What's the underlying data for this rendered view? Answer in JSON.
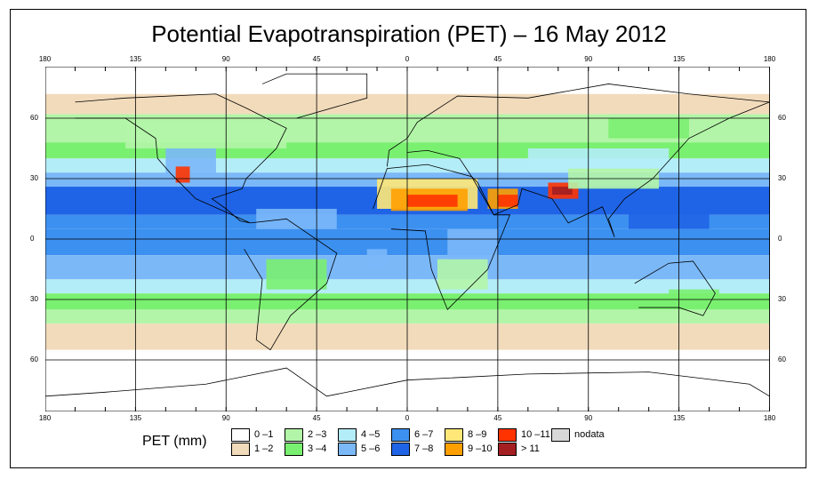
{
  "title": "Potential Evapotranspiration (PET) – 16 May 2012",
  "axes": {
    "lon_labels": [
      "180",
      "135",
      "90",
      "45",
      "0",
      "45",
      "90",
      "135",
      "180"
    ],
    "lat_labels": [
      "60",
      "30",
      "0",
      "30",
      "60"
    ]
  },
  "legend": {
    "title": "PET (mm)",
    "items": [
      {
        "label": "0 –1",
        "color": "#ffffff"
      },
      {
        "label": "1 –2",
        "color": "#f2dbbb"
      },
      {
        "label": "2 –3",
        "color": "#b3f5a8"
      },
      {
        "label": "3 –4",
        "color": "#7af070"
      },
      {
        "label": "4 –5",
        "color": "#b3edf8"
      },
      {
        "label": "5 –6",
        "color": "#7bb8f8"
      },
      {
        "label": "6 –7",
        "color": "#3c90f0"
      },
      {
        "label": "7 –8",
        "color": "#1f64e6"
      },
      {
        "label": "8 –9",
        "color": "#ffe877"
      },
      {
        "label": "9 –10",
        "color": "#ffa000"
      },
      {
        "label": "10 –11",
        "color": "#ff3300"
      },
      {
        "label": "> 11",
        "color": "#a31f22"
      },
      {
        "label": "nodata",
        "color": "#d8d8d8"
      }
    ]
  }
}
